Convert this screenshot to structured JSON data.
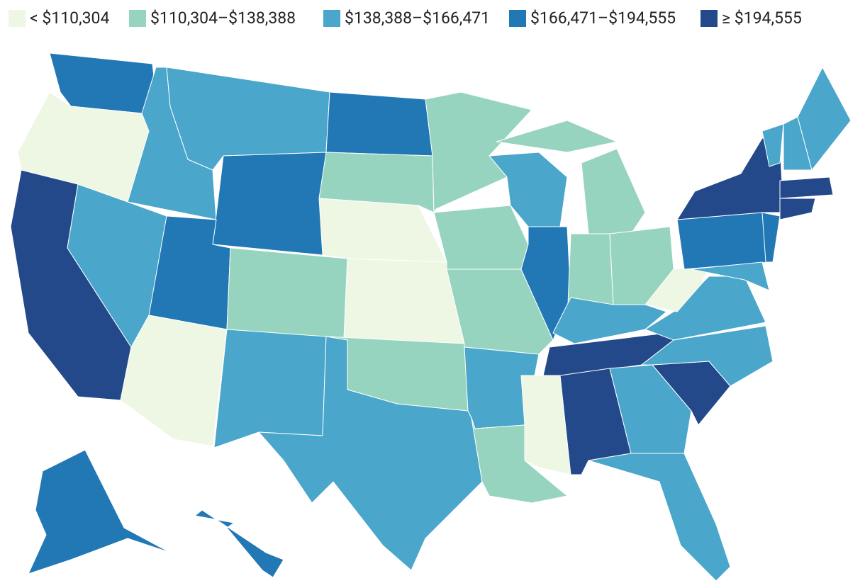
{
  "legend": [
    {
      "label": "< $110,304",
      "color": "#eef7e4"
    },
    {
      "label": "$110,304–$138,388",
      "color": "#97d4bf"
    },
    {
      "label": "$138,388–$166,471",
      "color": "#4aa6ca"
    },
    {
      "label": "$166,471–$194,555",
      "color": "#2178b5"
    },
    {
      "label": "≥ $194,555",
      "color": "#24498a"
    }
  ],
  "regions": [
    {
      "bin": 3
    },
    {
      "bin": 0
    },
    {
      "bin": 4
    },
    {
      "bin": 2
    },
    {
      "bin": 2
    },
    {
      "bin": 2
    },
    {
      "bin": 3
    },
    {
      "bin": 3
    },
    {
      "bin": 0
    },
    {
      "bin": 1
    },
    {
      "bin": 2
    },
    {
      "bin": 3
    },
    {
      "bin": 1
    },
    {
      "bin": 0
    },
    {
      "bin": 0
    },
    {
      "bin": 1
    },
    {
      "bin": 2
    },
    {
      "bin": 1
    },
    {
      "bin": 1
    },
    {
      "bin": 1
    },
    {
      "bin": 2
    },
    {
      "bin": 1
    },
    {
      "bin": 2
    },
    {
      "bin": 3
    },
    {
      "bin": 1
    },
    {
      "bin": 1
    },
    {
      "bin": 1
    },
    {
      "bin": 1
    },
    {
      "bin": 2
    },
    {
      "bin": 4
    },
    {
      "bin": 0
    },
    {
      "bin": 4
    },
    {
      "bin": 2
    },
    {
      "bin": 2
    },
    {
      "bin": 4
    },
    {
      "bin": 2
    },
    {
      "bin": 2
    },
    {
      "bin": 0
    },
    {
      "bin": 3
    },
    {
      "bin": 4
    },
    {
      "bin": 3
    },
    {
      "bin": 2
    },
    {
      "bin": 2
    },
    {
      "bin": 2
    },
    {
      "bin": 2
    },
    {
      "bin": 4
    },
    {
      "bin": 4
    },
    {
      "bin": 3
    },
    {
      "bin": 3
    }
  ]
}
